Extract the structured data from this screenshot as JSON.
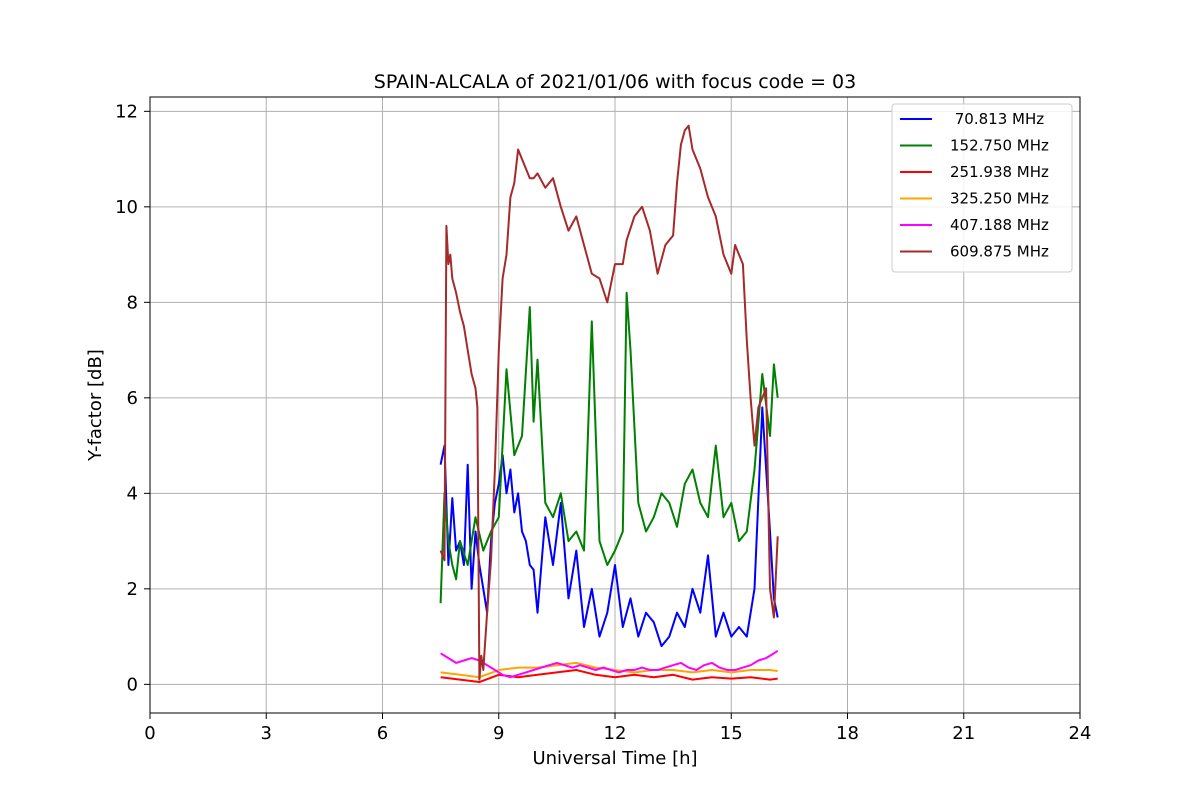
{
  "chart_data": {
    "type": "line",
    "title": "SPAIN-ALCALA of 2021/01/06 with focus code = 03",
    "xlabel": "Universal Time [h]",
    "ylabel": "Y-factor [dB]",
    "xlim": [
      0,
      24
    ],
    "ylim": [
      -0.6,
      12.3
    ],
    "xticks": [
      0,
      3,
      6,
      9,
      12,
      15,
      18,
      21,
      24
    ],
    "yticks": [
      0,
      2,
      4,
      6,
      8,
      10,
      12
    ],
    "grid": true,
    "legend_position": "top-right",
    "series": [
      {
        "name": " 70.813 MHz",
        "color": "#0000ff",
        "x": [
          7.5,
          7.6,
          7.7,
          7.8,
          7.9,
          8.0,
          8.1,
          8.2,
          8.3,
          8.4,
          8.5,
          8.6,
          8.7,
          8.8,
          8.9,
          9.0,
          9.1,
          9.2,
          9.3,
          9.4,
          9.5,
          9.6,
          9.7,
          9.8,
          9.9,
          10.0,
          10.2,
          10.4,
          10.6,
          10.8,
          11.0,
          11.2,
          11.4,
          11.6,
          11.8,
          12.0,
          12.2,
          12.4,
          12.6,
          12.8,
          13.0,
          13.2,
          13.4,
          13.6,
          13.8,
          14.0,
          14.2,
          14.4,
          14.6,
          14.8,
          15.0,
          15.2,
          15.4,
          15.6,
          15.8,
          16.0,
          16.1,
          16.2
        ],
        "y": [
          4.6,
          5.0,
          2.5,
          3.9,
          2.8,
          3.0,
          2.5,
          4.6,
          2.0,
          3.2,
          2.5,
          2.0,
          1.5,
          3.0,
          3.8,
          4.2,
          4.8,
          4.0,
          4.5,
          3.6,
          4.0,
          3.2,
          3.0,
          2.5,
          2.4,
          1.5,
          3.5,
          2.5,
          3.8,
          1.8,
          2.8,
          1.2,
          2.0,
          1.0,
          1.5,
          2.5,
          1.2,
          1.8,
          1.0,
          1.5,
          1.3,
          0.8,
          1.0,
          1.5,
          1.2,
          2.0,
          1.5,
          2.7,
          1.0,
          1.5,
          1.0,
          1.2,
          1.0,
          2.0,
          5.8,
          3.2,
          1.8,
          1.4
        ]
      },
      {
        "name": "152.750 MHz",
        "color": "#008000",
        "x": [
          7.5,
          7.6,
          7.7,
          7.8,
          7.9,
          8.0,
          8.2,
          8.4,
          8.6,
          8.8,
          9.0,
          9.2,
          9.4,
          9.6,
          9.8,
          9.9,
          10.0,
          10.2,
          10.4,
          10.6,
          10.8,
          11.0,
          11.2,
          11.4,
          11.6,
          11.8,
          12.0,
          12.2,
          12.3,
          12.4,
          12.6,
          12.8,
          13.0,
          13.2,
          13.4,
          13.6,
          13.8,
          14.0,
          14.2,
          14.4,
          14.6,
          14.8,
          15.0,
          15.2,
          15.4,
          15.6,
          15.8,
          16.0,
          16.1,
          16.2
        ],
        "y": [
          1.7,
          4.0,
          3.0,
          2.5,
          2.2,
          3.0,
          2.5,
          3.5,
          2.8,
          3.2,
          3.5,
          6.6,
          4.8,
          5.2,
          7.9,
          5.5,
          6.8,
          3.8,
          3.5,
          4.0,
          3.0,
          3.2,
          2.8,
          7.6,
          3.0,
          2.5,
          2.8,
          3.2,
          8.2,
          7.0,
          3.8,
          3.2,
          3.5,
          4.0,
          3.8,
          3.3,
          4.2,
          4.5,
          3.8,
          3.5,
          5.0,
          3.5,
          3.8,
          3.0,
          3.2,
          4.5,
          6.5,
          5.2,
          6.7,
          6.0
        ]
      },
      {
        "name": "251.938 MHz",
        "color": "#ff0000",
        "x": [
          7.5,
          8.0,
          8.5,
          9.0,
          9.5,
          10.0,
          10.5,
          11.0,
          11.5,
          12.0,
          12.5,
          13.0,
          13.5,
          14.0,
          14.5,
          15.0,
          15.5,
          16.0,
          16.2
        ],
        "y": [
          0.15,
          0.1,
          0.05,
          0.2,
          0.15,
          0.2,
          0.25,
          0.3,
          0.2,
          0.15,
          0.2,
          0.15,
          0.2,
          0.1,
          0.15,
          0.12,
          0.15,
          0.1,
          0.12
        ]
      },
      {
        "name": "325.250 MHz",
        "color": "#ffa500",
        "x": [
          7.5,
          8.0,
          8.5,
          9.0,
          9.5,
          10.0,
          10.5,
          11.0,
          11.5,
          12.0,
          12.5,
          13.0,
          13.5,
          14.0,
          14.5,
          15.0,
          15.5,
          16.0,
          16.2
        ],
        "y": [
          0.25,
          0.2,
          0.15,
          0.3,
          0.35,
          0.35,
          0.4,
          0.45,
          0.35,
          0.3,
          0.25,
          0.3,
          0.3,
          0.25,
          0.3,
          0.25,
          0.3,
          0.3,
          0.28
        ]
      },
      {
        "name": "407.188 MHz",
        "color": "#ff00ff",
        "x": [
          7.5,
          7.7,
          7.9,
          8.1,
          8.3,
          8.5,
          8.7,
          8.9,
          9.1,
          9.3,
          9.5,
          9.7,
          9.9,
          10.1,
          10.3,
          10.5,
          10.7,
          10.9,
          11.1,
          11.3,
          11.5,
          11.7,
          11.9,
          12.1,
          12.3,
          12.5,
          12.7,
          12.9,
          13.1,
          13.3,
          13.5,
          13.7,
          13.9,
          14.1,
          14.3,
          14.5,
          14.7,
          14.9,
          15.1,
          15.3,
          15.5,
          15.7,
          15.9,
          16.1,
          16.2
        ],
        "y": [
          0.65,
          0.55,
          0.45,
          0.5,
          0.55,
          0.5,
          0.4,
          0.3,
          0.2,
          0.15,
          0.2,
          0.25,
          0.3,
          0.35,
          0.4,
          0.45,
          0.4,
          0.35,
          0.4,
          0.35,
          0.3,
          0.35,
          0.3,
          0.25,
          0.3,
          0.3,
          0.35,
          0.3,
          0.3,
          0.35,
          0.4,
          0.45,
          0.35,
          0.3,
          0.4,
          0.45,
          0.35,
          0.3,
          0.3,
          0.35,
          0.4,
          0.5,
          0.55,
          0.65,
          0.7
        ]
      },
      {
        "name": "609.875 MHz",
        "color": "#a52a2a",
        "x": [
          7.5,
          7.6,
          7.65,
          7.7,
          7.75,
          7.8,
          7.9,
          8.0,
          8.1,
          8.2,
          8.3,
          8.4,
          8.45,
          8.5,
          8.55,
          8.6,
          8.7,
          8.8,
          8.9,
          9.0,
          9.1,
          9.2,
          9.3,
          9.4,
          9.5,
          9.6,
          9.7,
          9.8,
          9.9,
          10.0,
          10.2,
          10.4,
          10.6,
          10.8,
          11.0,
          11.2,
          11.4,
          11.6,
          11.8,
          12.0,
          12.2,
          12.3,
          12.5,
          12.7,
          12.9,
          13.1,
          13.3,
          13.5,
          13.6,
          13.7,
          13.8,
          13.9,
          14.0,
          14.2,
          14.4,
          14.6,
          14.8,
          15.0,
          15.1,
          15.2,
          15.3,
          15.4,
          15.5,
          15.6,
          15.7,
          15.8,
          15.9,
          16.0,
          16.1,
          16.2
        ],
        "y": [
          2.8,
          2.6,
          9.6,
          8.8,
          9.0,
          8.5,
          8.2,
          7.8,
          7.5,
          7.0,
          6.5,
          6.2,
          5.8,
          0.1,
          0.6,
          0.3,
          1.5,
          2.6,
          4.5,
          7.0,
          8.5,
          9.0,
          10.2,
          10.5,
          11.2,
          11.0,
          10.8,
          10.6,
          10.6,
          10.7,
          10.4,
          10.6,
          10.0,
          9.5,
          9.8,
          9.2,
          8.6,
          8.5,
          8.0,
          8.8,
          8.8,
          9.3,
          9.8,
          10.0,
          9.5,
          8.6,
          9.2,
          9.4,
          10.5,
          11.3,
          11.6,
          11.7,
          11.2,
          10.8,
          10.2,
          9.8,
          9.0,
          8.6,
          9.2,
          9.0,
          8.8,
          7.2,
          6.0,
          5.0,
          5.8,
          6.0,
          6.2,
          2.0,
          1.4,
          3.1
        ]
      }
    ]
  }
}
